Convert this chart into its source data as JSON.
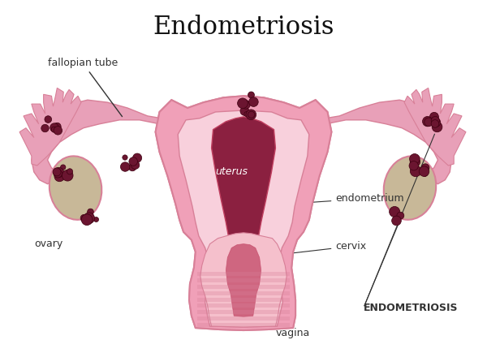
{
  "title": "Endometriosis",
  "title_fontsize": 22,
  "title_fontweight": "normal",
  "title_font": "serif",
  "background_color": "#ffffff",
  "labels": {
    "fallopian_tube": "fallopian tube",
    "ovary": "ovary",
    "uterus": "uterus",
    "endometrium": "endometrium",
    "cervix": "cervix",
    "vagina": "vagina",
    "endometriosis": "ENDOMETRIOSIS"
  },
  "colors": {
    "outer_pink": "#f0a0b8",
    "inner_pink": "#f5c0cc",
    "dark_cavity": "#8b2040",
    "medium_cavity": "#c04060",
    "tube_color": "#e8a0b8",
    "ovary_color": "#c8b898",
    "endometriosis_spots": "#6b1530",
    "line_color": "#333333",
    "text_color": "#333333",
    "light_pink": "#f8d0dc",
    "stripe_color": "#d88098"
  },
  "figsize": [
    6.0,
    4.19
  ],
  "dpi": 100
}
